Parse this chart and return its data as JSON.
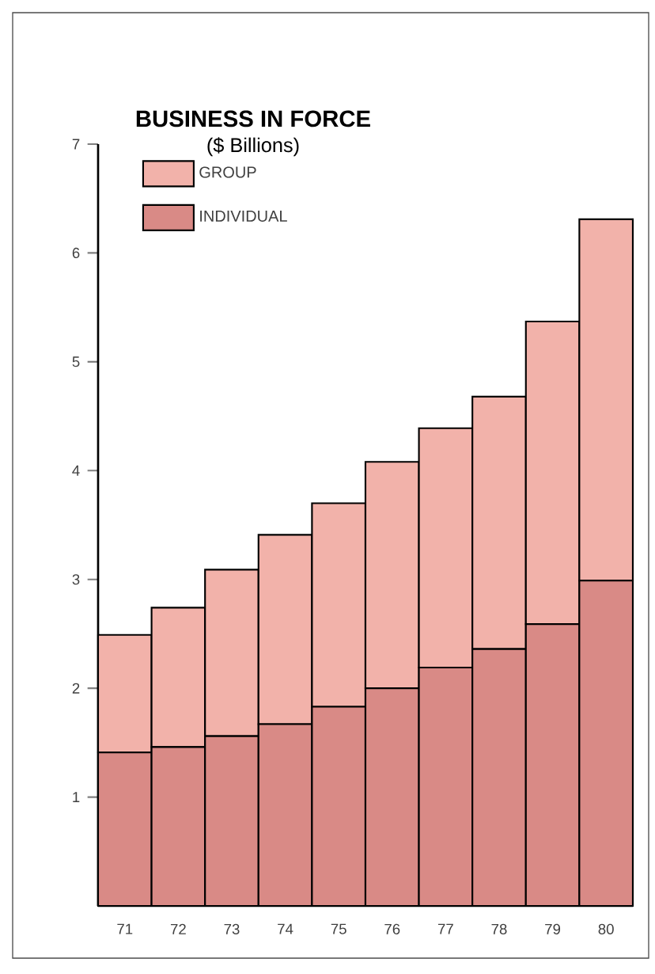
{
  "chart_data": {
    "type": "bar",
    "title": "BUSINESS IN FORCE",
    "subtitle": "($ Billions)",
    "stacked": true,
    "legend": "top left",
    "categories": [
      "71",
      "72",
      "73",
      "74",
      "75",
      "76",
      "77",
      "78",
      "79",
      "80"
    ],
    "series": [
      {
        "name": "INDIVIDUAL",
        "color": "#d98a86",
        "values": [
          1.41,
          1.46,
          1.56,
          1.67,
          1.83,
          2.0,
          2.19,
          2.36,
          2.59,
          2.99
        ]
      },
      {
        "name": "GROUP",
        "color": "#f2b2aa",
        "values": [
          1.08,
          1.28,
          1.53,
          1.74,
          1.87,
          2.08,
          2.2,
          2.32,
          2.78,
          3.32
        ]
      }
    ],
    "ylim": [
      0,
      7
    ],
    "yticks": [
      1,
      2,
      3,
      4,
      5,
      6,
      7
    ]
  }
}
